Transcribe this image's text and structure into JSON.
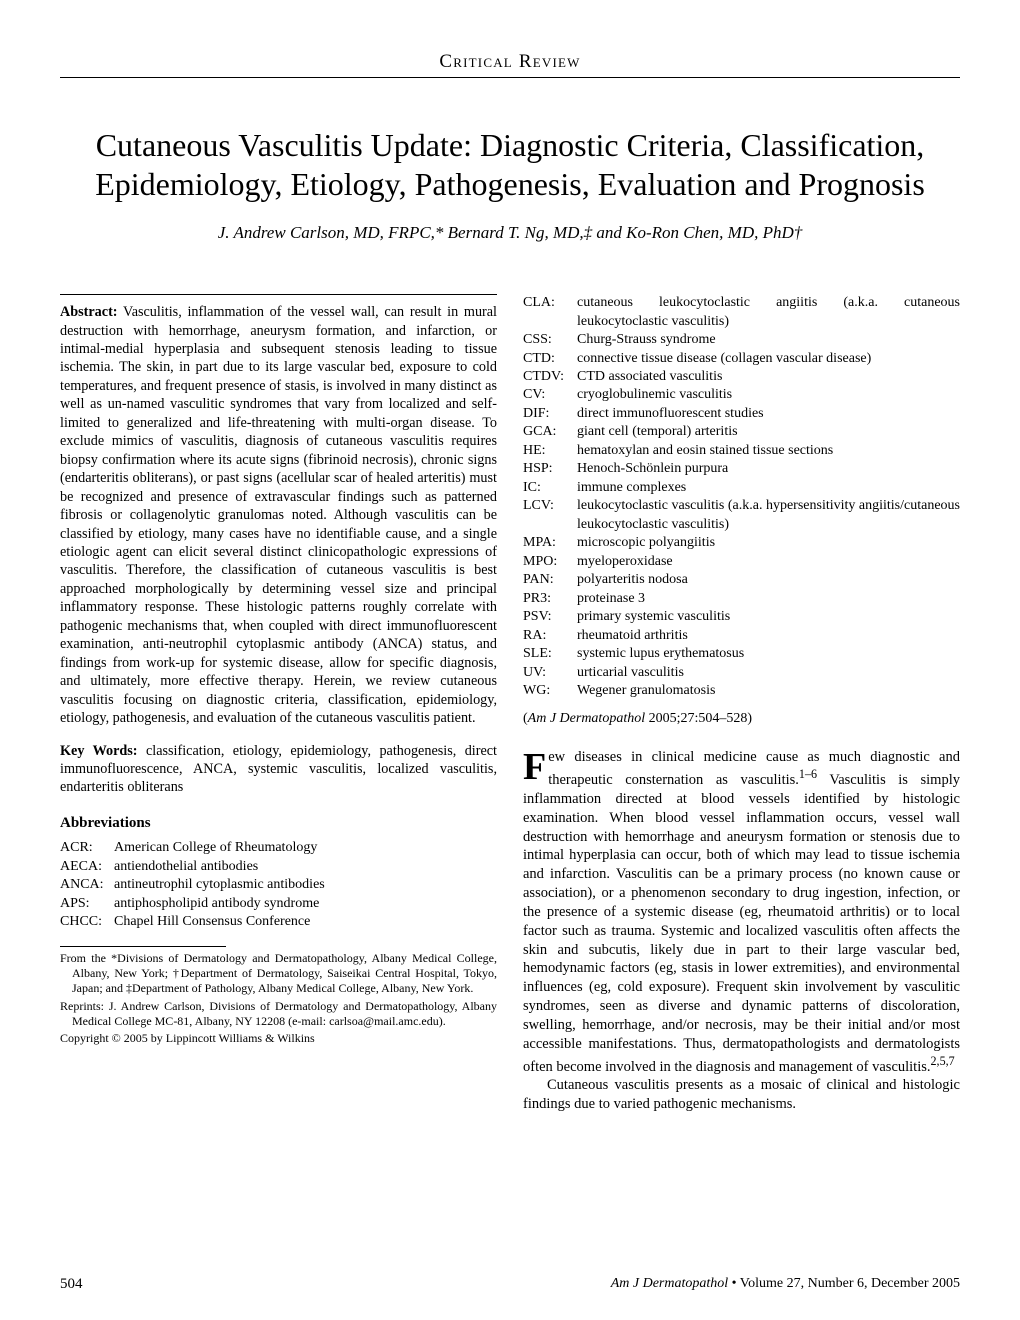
{
  "section_header": "Critical Review",
  "title": "Cutaneous Vasculitis Update: Diagnostic Criteria, Classification, Epidemiology, Etiology, Pathogenesis, Evaluation and Prognosis",
  "authors": "J. Andrew Carlson, MD, FRPC,* Bernard T. Ng, MD,‡ and Ko-Ron Chen, MD, PhD†",
  "abstract_label": "Abstract:",
  "abstract_text": " Vasculitis, inflammation of the vessel wall, can result in mural destruction with hemorrhage, aneurysm formation, and infarction, or intimal-medial hyperplasia and subsequent stenosis leading to tissue ischemia. The skin, in part due to its large vascular bed, exposure to cold temperatures, and frequent presence of stasis, is involved in many distinct as well as un-named vasculitic syndromes that vary from localized and self-limited to generalized and life-threatening with multi-organ disease. To exclude mimics of vasculitis, diagnosis of cutaneous vasculitis requires biopsy confirmation where its acute signs (fibrinoid necrosis), chronic signs (endarteritis obliterans), or past signs (acellular scar of healed arteritis) must be recognized and presence of extravascular findings such as patterned fibrosis or collagenolytic granulomas noted. Although vasculitis can be classified by etiology, many cases have no identifiable cause, and a single etiologic agent can elicit several distinct clinicopathologic expressions of vasculitis. Therefore, the classification of cutaneous vasculitis is best approached morphologically by determining vessel size and principal inflammatory response. These histologic patterns roughly correlate with pathogenic mechanisms that, when coupled with direct immunofluorescent examination, anti-neutrophil cytoplasmic antibody (ANCA) status, and findings from work-up for systemic disease, allow for specific diagnosis, and ultimately, more effective therapy. Herein, we review cutaneous vasculitis focusing on diagnostic criteria, classification, epidemiology, etiology, pathogenesis, and evaluation of the cutaneous vasculitis patient.",
  "keywords_label": "Key Words:",
  "keywords_text": " classification, etiology, epidemiology, pathogenesis, direct immunofluorescence, ANCA, systemic vasculitis, localized vasculitis, endarteritis obliterans",
  "abbreviations_header": "Abbreviations",
  "abbr_left": [
    {
      "k": "ACR:",
      "v": "American College of Rheumatology"
    },
    {
      "k": "AECA:",
      "v": "antiendothelial antibodies"
    },
    {
      "k": "ANCA:",
      "v": "antineutrophil cytoplasmic antibodies"
    },
    {
      "k": "APS:",
      "v": "antiphospholipid antibody syndrome"
    },
    {
      "k": "CHCC:",
      "v": "Chapel Hill Consensus Conference"
    }
  ],
  "abbr_right": [
    {
      "k": "CLA:",
      "v": "cutaneous leukocytoclastic angiitis (a.k.a. cutaneous leukocytoclastic vasculitis)"
    },
    {
      "k": "CSS:",
      "v": "Churg-Strauss syndrome"
    },
    {
      "k": "CTD:",
      "v": "connective tissue disease (collagen vascular disease)"
    },
    {
      "k": "CTDV:",
      "v": "CTD associated vasculitis"
    },
    {
      "k": "CV:",
      "v": "cryoglobulinemic vasculitis"
    },
    {
      "k": "DIF:",
      "v": "direct immunofluorescent studies"
    },
    {
      "k": "GCA:",
      "v": "giant cell (temporal) arteritis"
    },
    {
      "k": "HE:",
      "v": "hematoxylan and eosin stained tissue sections"
    },
    {
      "k": "HSP:",
      "v": "Henoch-Schönlein purpura"
    },
    {
      "k": "IC:",
      "v": "immune complexes"
    },
    {
      "k": "LCV:",
      "v": "leukocytoclastic vasculitis (a.k.a. hypersensitivity angiitis/cutaneous leukocytoclastic vasculitis)"
    },
    {
      "k": "MPA:",
      "v": "microscopic polyangiitis"
    },
    {
      "k": "MPO:",
      "v": "myeloperoxidase"
    },
    {
      "k": "PAN:",
      "v": "polyarteritis nodosa"
    },
    {
      "k": "PR3:",
      "v": "proteinase 3"
    },
    {
      "k": "PSV:",
      "v": "primary systemic vasculitis"
    },
    {
      "k": "RA:",
      "v": "rheumatoid arthritis"
    },
    {
      "k": "SLE:",
      "v": "systemic lupus erythematosus"
    },
    {
      "k": "UV:",
      "v": "urticarial vasculitis"
    },
    {
      "k": "WG:",
      "v": "Wegener granulomatosis"
    }
  ],
  "citation_journal": "Am J Dermatopathol",
  "citation_rest": " 2005;27:504–528)",
  "citation_open": "(",
  "drop_letter": "F",
  "body_p1_rest": "ew diseases in clinical medicine cause as much diagnostic and therapeutic consternation as vasculitis.",
  "body_p1_sup": "1–6",
  "body_p1_cont": " Vasculitis is simply inflammation directed at blood vessels identified by histologic examination. When blood vessel inflammation occurs, vessel wall destruction with hemorrhage and aneurysm formation or stenosis due to intimal hyperplasia can occur, both of which may lead to tissue ischemia and infarction. Vasculitis can be a primary process (no known cause or association), or a phenomenon secondary to drug ingestion, infection, or the presence of a systemic disease (eg, rheumatoid arthritis) or to local factor such as trauma. Systemic and localized vasculitis often affects the skin and subcutis, likely due in part to their large vascular bed, hemodynamic factors (eg, stasis in lower extremities), and environmental influences (eg, cold exposure). Frequent skin involvement by vasculitic syndromes, seen as diverse and dynamic patterns of discoloration, swelling, hemorrhage, and/or necrosis, may be their initial and/or most accessible manifestations. Thus, dermatopathologists and dermatologists often become involved in the diagnosis and management of vasculitis.",
  "body_p1_sup2": "2,5,7",
  "body_p2": "Cutaneous vasculitis presents as a mosaic of clinical and histologic findings due to varied pathogenic mechanisms.",
  "footnote1": "From the *Divisions of Dermatology and Dermatopathology, Albany Medical College, Albany, New York; †Department of Dermatology, Saiseikai Central Hospital, Tokyo, Japan; and ‡Department of Pathology, Albany Medical College, Albany, New York.",
  "footnote2": "Reprints: J. Andrew Carlson, Divisions of Dermatology and Dermatopathology, Albany Medical College MC-81, Albany, NY 12208 (e-mail: carlsoa@mail.amc.edu).",
  "footnote3": "Copyright © 2005 by Lippincott Williams & Wilkins",
  "page_number": "504",
  "footer_journal": "Am J Dermatopathol",
  "footer_rest": " • Volume 27, Number 6, December 2005"
}
